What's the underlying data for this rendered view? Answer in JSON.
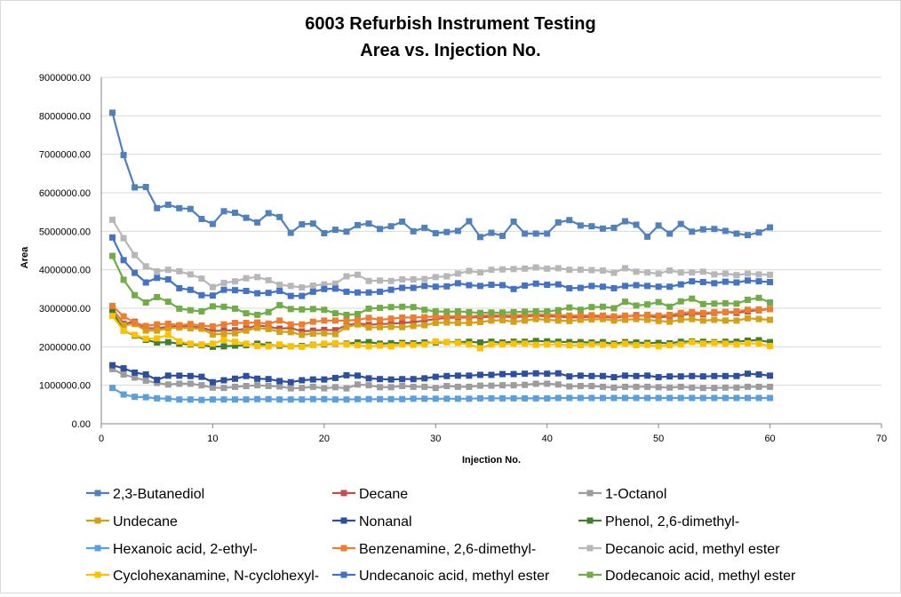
{
  "chart_data": {
    "type": "line",
    "title": "6003 Refurbish Instrument Testing",
    "subtitle": "Area vs. Injection No.",
    "xlabel": "Injection No.",
    "ylabel": "Area",
    "xlim": [
      0,
      70
    ],
    "ylim": [
      0,
      9000000
    ],
    "x_ticks": [
      "0",
      "10",
      "20",
      "30",
      "40",
      "50",
      "60",
      "70"
    ],
    "y_ticks": [
      "0.00",
      "1000000.00",
      "2000000.00",
      "3000000.00",
      "4000000.00",
      "5000000.00",
      "6000000.00",
      "7000000.00",
      "8000000.00",
      "9000000.00"
    ],
    "grid": "horizontal",
    "legend_position": "bottom",
    "series": [
      {
        "name": "2,3-Butanediol",
        "color": "#4f81bd",
        "values": [
          8080000,
          6980000,
          6140000,
          6150000,
          5600000,
          5690000,
          5600000,
          5580000,
          5320000,
          5190000,
          5520000,
          5480000,
          5350000,
          5230000,
          5470000,
          5370000,
          4960000,
          5180000,
          5200000,
          4950000,
          5040000,
          4990000,
          5160000,
          5200000,
          5060000,
          5130000,
          5250000,
          5000000,
          5090000,
          4950000,
          4980000,
          5010000,
          5260000,
          4850000,
          4960000,
          4880000,
          5250000,
          4940000,
          4940000,
          4940000,
          5230000,
          5290000,
          5150000,
          5130000,
          5070000,
          5090000,
          5260000,
          5170000,
          4860000,
          5150000,
          4940000,
          5190000,
          4990000,
          5050000,
          5060000,
          5010000,
          4940000,
          4900000,
          4970000,
          5100000
        ]
      },
      {
        "name": "Decane",
        "color": "#c0504d",
        "values": [
          2980000,
          2600000,
          2650000,
          2480000,
          2480000,
          2520000,
          2540000,
          2530000,
          2500000,
          2410000,
          2420000,
          2430000,
          2470000,
          2560000,
          2520000,
          2470000,
          2490000,
          2400000,
          2420000,
          2440000,
          2430000,
          2560000,
          2610000,
          2570000,
          2590000,
          2600000,
          2620000,
          2640000,
          2680000,
          2720000,
          2750000,
          2760000,
          2760000,
          2770000,
          2780000,
          2790000,
          2770000,
          2790000,
          2810000,
          2790000,
          2790000,
          2760000,
          2770000,
          2780000,
          2780000,
          2750000,
          2790000,
          2820000,
          2800000,
          2760000,
          2790000,
          2820000,
          2860000,
          2850000,
          2880000,
          2900000,
          2880000,
          2920000,
          2950000,
          2980000
        ]
      },
      {
        "name": "1-Octanol",
        "color": "#9c9c9c",
        "values": [
          1420000,
          1280000,
          1200000,
          1120000,
          1060000,
          1020000,
          1040000,
          1040000,
          1000000,
          940000,
          930000,
          960000,
          980000,
          1000000,
          980000,
          970000,
          920000,
          930000,
          960000,
          920000,
          950000,
          920000,
          1020000,
          1000000,
          950000,
          950000,
          980000,
          960000,
          960000,
          930000,
          980000,
          960000,
          960000,
          990000,
          990000,
          1000000,
          1000000,
          1010000,
          1040000,
          1040000,
          1020000,
          970000,
          980000,
          980000,
          960000,
          940000,
          960000,
          960000,
          960000,
          950000,
          940000,
          960000,
          940000,
          930000,
          930000,
          940000,
          940000,
          960000,
          960000,
          960000
        ]
      },
      {
        "name": "Undecane",
        "color": "#d4a017",
        "values": [
          2960000,
          2560000,
          2590000,
          2420000,
          2420000,
          2480000,
          2500000,
          2480000,
          2470000,
          2320000,
          2340000,
          2350000,
          2420000,
          2490000,
          2460000,
          2390000,
          2380000,
          2310000,
          2340000,
          2350000,
          2330000,
          2510000,
          2580000,
          2500000,
          2510000,
          2520000,
          2510000,
          2540000,
          2560000,
          2620000,
          2630000,
          2620000,
          2620000,
          2640000,
          2680000,
          2690000,
          2650000,
          2680000,
          2720000,
          2700000,
          2680000,
          2670000,
          2700000,
          2710000,
          2720000,
          2680000,
          2700000,
          2720000,
          2700000,
          2670000,
          2650000,
          2700000,
          2720000,
          2680000,
          2700000,
          2680000,
          2680000,
          2740000,
          2720000,
          2700000
        ]
      },
      {
        "name": "Nonanal",
        "color": "#2e4fa0",
        "values": [
          1520000,
          1440000,
          1330000,
          1280000,
          1140000,
          1250000,
          1250000,
          1240000,
          1220000,
          1080000,
          1130000,
          1170000,
          1240000,
          1170000,
          1160000,
          1110000,
          1080000,
          1130000,
          1150000,
          1150000,
          1190000,
          1260000,
          1250000,
          1180000,
          1160000,
          1150000,
          1160000,
          1160000,
          1180000,
          1220000,
          1240000,
          1250000,
          1250000,
          1270000,
          1270000,
          1290000,
          1290000,
          1300000,
          1310000,
          1300000,
          1310000,
          1230000,
          1250000,
          1240000,
          1240000,
          1210000,
          1250000,
          1240000,
          1250000,
          1210000,
          1230000,
          1230000,
          1240000,
          1230000,
          1240000,
          1240000,
          1240000,
          1300000,
          1280000,
          1250000
        ]
      },
      {
        "name": "Phenol, 2,6-dimethyl-",
        "color": "#3f7f2f",
        "values": [
          2920000,
          2420000,
          2290000,
          2180000,
          2110000,
          2120000,
          2080000,
          2060000,
          2040000,
          2000000,
          2010000,
          2030000,
          2040000,
          2080000,
          2050000,
          2030000,
          2010000,
          2020000,
          2050000,
          2060000,
          2080000,
          2080000,
          2110000,
          2120000,
          2080000,
          2090000,
          2100000,
          2090000,
          2110000,
          2110000,
          2120000,
          2120000,
          2130000,
          2110000,
          2130000,
          2110000,
          2130000,
          2130000,
          2150000,
          2140000,
          2130000,
          2120000,
          2120000,
          2110000,
          2120000,
          2080000,
          2120000,
          2110000,
          2100000,
          2100000,
          2090000,
          2130000,
          2140000,
          2130000,
          2120000,
          2130000,
          2130000,
          2160000,
          2170000,
          2120000
        ]
      },
      {
        "name": "Hexanoic acid, 2-ethyl-",
        "color": "#5aa0e0",
        "values": [
          930000,
          760000,
          700000,
          690000,
          660000,
          650000,
          630000,
          630000,
          620000,
          630000,
          630000,
          630000,
          630000,
          640000,
          640000,
          630000,
          630000,
          630000,
          640000,
          640000,
          630000,
          630000,
          640000,
          640000,
          640000,
          640000,
          640000,
          650000,
          650000,
          650000,
          650000,
          650000,
          650000,
          660000,
          660000,
          660000,
          660000,
          660000,
          660000,
          660000,
          670000,
          670000,
          670000,
          670000,
          670000,
          670000,
          670000,
          670000,
          670000,
          670000,
          670000,
          670000,
          670000,
          670000,
          670000,
          670000,
          670000,
          670000,
          670000,
          670000
        ]
      },
      {
        "name": "Benzenamine, 2,6-dimethyl-",
        "color": "#ed7d31",
        "values": [
          3060000,
          2790000,
          2630000,
          2540000,
          2580000,
          2600000,
          2560000,
          2590000,
          2550000,
          2530000,
          2580000,
          2620000,
          2620000,
          2630000,
          2600000,
          2680000,
          2580000,
          2580000,
          2650000,
          2680000,
          2680000,
          2680000,
          2700000,
          2750000,
          2700000,
          2730000,
          2760000,
          2760000,
          2770000,
          2790000,
          2790000,
          2800000,
          2780000,
          2820000,
          2820000,
          2830000,
          2820000,
          2830000,
          2840000,
          2840000,
          2820000,
          2810000,
          2810000,
          2820000,
          2810000,
          2790000,
          2810000,
          2790000,
          2830000,
          2810000,
          2830000,
          2880000,
          2900000,
          2880000,
          2900000,
          2900000,
          2920000,
          2960000,
          2970000,
          2980000
        ]
      },
      {
        "name": "Decanoic acid, methyl ester",
        "color": "#b7b7b7",
        "values": [
          5300000,
          4820000,
          4380000,
          4090000,
          3960000,
          4000000,
          3960000,
          3880000,
          3770000,
          3550000,
          3660000,
          3700000,
          3780000,
          3810000,
          3730000,
          3610000,
          3580000,
          3540000,
          3590000,
          3620000,
          3640000,
          3830000,
          3870000,
          3710000,
          3720000,
          3710000,
          3750000,
          3750000,
          3760000,
          3810000,
          3830000,
          3900000,
          3970000,
          3930000,
          4000000,
          4010000,
          4020000,
          4030000,
          4060000,
          4030000,
          4040000,
          4000000,
          4000000,
          3990000,
          3980000,
          3920000,
          4040000,
          3950000,
          3930000,
          3900000,
          3980000,
          3930000,
          3930000,
          3950000,
          3880000,
          3900000,
          3860000,
          3900000,
          3880000,
          3870000
        ]
      },
      {
        "name": "Cyclohexanamine, N-cyclohexyl-",
        "color": "#ffc000",
        "values": [
          2800000,
          2420000,
          2310000,
          2210000,
          2220000,
          2310000,
          2140000,
          2080000,
          2060000,
          2080000,
          2180000,
          2130000,
          2080000,
          2020000,
          2010000,
          2060000,
          2010000,
          2000000,
          2040000,
          2080000,
          2090000,
          2060000,
          2040000,
          2010000,
          2030000,
          2010000,
          2060000,
          2050000,
          2060000,
          2140000,
          2120000,
          2100000,
          2060000,
          1960000,
          2060000,
          2060000,
          2080000,
          2080000,
          2050000,
          2060000,
          2060000,
          2040000,
          2040000,
          2060000,
          2050000,
          2040000,
          2080000,
          2040000,
          2050000,
          2010000,
          2040000,
          2060000,
          2120000,
          2080000,
          2100000,
          2080000,
          2060000,
          2090000,
          2080000,
          2020000
        ]
      },
      {
        "name": "Undecanoic acid, methyl ester",
        "color": "#4472c4",
        "values": [
          4840000,
          4250000,
          3920000,
          3670000,
          3790000,
          3750000,
          3520000,
          3480000,
          3340000,
          3330000,
          3480000,
          3470000,
          3450000,
          3390000,
          3400000,
          3450000,
          3320000,
          3320000,
          3430000,
          3500000,
          3510000,
          3430000,
          3410000,
          3410000,
          3430000,
          3480000,
          3530000,
          3530000,
          3580000,
          3560000,
          3570000,
          3650000,
          3600000,
          3580000,
          3610000,
          3600000,
          3500000,
          3590000,
          3640000,
          3610000,
          3620000,
          3520000,
          3530000,
          3580000,
          3560000,
          3520000,
          3580000,
          3600000,
          3580000,
          3560000,
          3560000,
          3620000,
          3700000,
          3680000,
          3650000,
          3690000,
          3670000,
          3720000,
          3700000,
          3680000
        ]
      },
      {
        "name": "Dodecanoic acid, methyl ester",
        "color": "#70ad47",
        "values": [
          4360000,
          3740000,
          3340000,
          3150000,
          3290000,
          3170000,
          2990000,
          2950000,
          2920000,
          3050000,
          3040000,
          2990000,
          2870000,
          2830000,
          2900000,
          3080000,
          2980000,
          2970000,
          2980000,
          2960000,
          2870000,
          2830000,
          2850000,
          2990000,
          3010000,
          3030000,
          3040000,
          3030000,
          2960000,
          2920000,
          2910000,
          2920000,
          2900000,
          2880000,
          2890000,
          2890000,
          2900000,
          2910000,
          2920000,
          2920000,
          2950000,
          3020000,
          2960000,
          3030000,
          3040000,
          3000000,
          3170000,
          3070000,
          3100000,
          3160000,
          3040000,
          3180000,
          3250000,
          3110000,
          3120000,
          3130000,
          3120000,
          3220000,
          3270000,
          3150000
        ]
      }
    ]
  }
}
